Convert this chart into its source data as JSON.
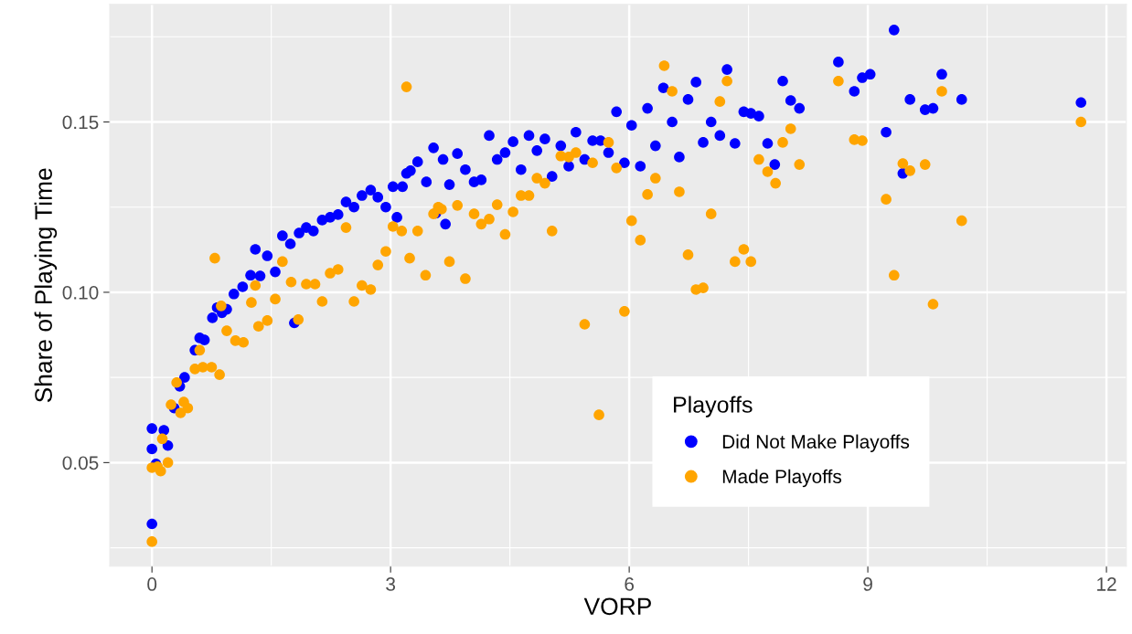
{
  "chart_data": {
    "type": "scatter",
    "xlabel": "VORP",
    "ylabel": "Share of Playing Time",
    "legend_title": "Playoffs",
    "legend": "bottom right",
    "grid": true,
    "marker": "circle",
    "xlim": [
      -0.53,
      12.25
    ],
    "ylim": [
      0.0196,
      0.1845
    ],
    "xticks": [
      0,
      3,
      6,
      9,
      12
    ],
    "yticks": [
      {
        "value": 0.05,
        "label": "0.05"
      },
      {
        "value": 0.1,
        "label": "0.10"
      },
      {
        "value": 0.15,
        "label": "0.15"
      }
    ],
    "series": [
      {
        "name": "Did Not Make Playoffs",
        "color": "#0000ff",
        "x": [
          0,
          0,
          0,
          0.05,
          0.15,
          0.2,
          0.28,
          0.35,
          0.41,
          0.54,
          0.6,
          0.66,
          0.76,
          0.82,
          0.88,
          0.94,
          1.03,
          1.14,
          1.24,
          1.3,
          1.36,
          1.45,
          1.55,
          1.64,
          1.74,
          1.79,
          1.85,
          1.94,
          2.03,
          2.14,
          2.24,
          2.34,
          2.44,
          2.54,
          2.64,
          2.75,
          2.84,
          2.94,
          3.03,
          3.08,
          3.15,
          3.2,
          3.25,
          3.34,
          3.45,
          3.54,
          3.57,
          3.66,
          3.69,
          3.74,
          3.84,
          3.94,
          4.05,
          4.14,
          4.24,
          4.34,
          4.44,
          4.54,
          4.64,
          4.74,
          4.84,
          4.94,
          5.03,
          5.14,
          5.24,
          5.33,
          5.44,
          5.54,
          5.64,
          5.74,
          5.84,
          5.94,
          6.03,
          6.14,
          6.23,
          6.33,
          6.43,
          6.54,
          6.63,
          6.74,
          6.84,
          6.93,
          7.03,
          7.14,
          7.23,
          7.33,
          7.44,
          7.53,
          7.63,
          7.74,
          7.83,
          7.93,
          8.03,
          8.14,
          8.63,
          8.83,
          8.93,
          9.03,
          9.23,
          9.33,
          9.44,
          9.53,
          9.72,
          9.82,
          9.93,
          10.18,
          11.68
        ],
        "values": [
          0.032,
          0.054,
          0.06,
          0.0496,
          0.0595,
          0.055,
          0.066,
          0.0724,
          0.075,
          0.083,
          0.0866,
          0.086,
          0.0925,
          0.0955,
          0.094,
          0.095,
          0.0995,
          0.1016,
          0.105,
          0.1126,
          0.1048,
          0.1107,
          0.106,
          0.1166,
          0.1142,
          0.091,
          0.1174,
          0.119,
          0.118,
          0.1212,
          0.122,
          0.1228,
          0.1265,
          0.125,
          0.1284,
          0.13,
          0.1279,
          0.125,
          0.131,
          0.122,
          0.131,
          0.1349,
          0.1357,
          0.1383,
          0.1324,
          0.1424,
          0.1232,
          0.139,
          0.12,
          0.1316,
          0.1407,
          0.136,
          0.1324,
          0.133,
          0.146,
          0.139,
          0.141,
          0.1442,
          0.136,
          0.146,
          0.1416,
          0.145,
          0.134,
          0.143,
          0.137,
          0.147,
          0.139,
          0.1445,
          0.1445,
          0.141,
          0.153,
          0.138,
          0.149,
          0.137,
          0.154,
          0.143,
          0.16,
          0.15,
          0.1397,
          0.1566,
          0.1617,
          0.144,
          0.15,
          0.146,
          0.1654,
          0.1437,
          0.153,
          0.1525,
          0.1517,
          0.1437,
          0.1375,
          0.162,
          0.1563,
          0.154,
          0.1676,
          0.159,
          0.163,
          0.164,
          0.147,
          0.177,
          0.1349,
          0.1566,
          0.1536,
          0.154,
          0.164,
          0.1566,
          0.1557
        ]
      },
      {
        "name": "Made Playoffs",
        "color": "#ffa500",
        "x": [
          0,
          0,
          0.07,
          0.11,
          0.13,
          0.2,
          0.24,
          0.31,
          0.36,
          0.4,
          0.45,
          0.54,
          0.6,
          0.64,
          0.75,
          0.79,
          0.85,
          0.87,
          0.94,
          1.05,
          1.15,
          1.25,
          1.3,
          1.34,
          1.45,
          1.55,
          1.64,
          1.75,
          1.84,
          1.94,
          2.05,
          2.14,
          2.24,
          2.34,
          2.44,
          2.54,
          2.64,
          2.75,
          2.84,
          2.94,
          3.03,
          3.14,
          3.2,
          3.24,
          3.34,
          3.44,
          3.54,
          3.6,
          3.64,
          3.74,
          3.84,
          3.94,
          4.05,
          4.14,
          4.24,
          4.34,
          4.44,
          4.54,
          4.64,
          4.74,
          4.84,
          4.94,
          5.03,
          5.14,
          5.24,
          5.33,
          5.44,
          5.54,
          5.62,
          5.74,
          5.84,
          5.94,
          6.03,
          6.14,
          6.23,
          6.33,
          6.44,
          6.54,
          6.63,
          6.74,
          6.84,
          6.93,
          7.03,
          7.14,
          7.23,
          7.33,
          7.44,
          7.53,
          7.63,
          7.74,
          7.84,
          7.93,
          8.03,
          8.14,
          8.63,
          8.83,
          8.93,
          9.23,
          9.33,
          9.44,
          9.53,
          9.72,
          9.82,
          9.93,
          10.18,
          11.68
        ],
        "values": [
          0.0268,
          0.0485,
          0.0488,
          0.0475,
          0.057,
          0.05,
          0.067,
          0.0735,
          0.0646,
          0.0678,
          0.066,
          0.0775,
          0.083,
          0.078,
          0.078,
          0.11,
          0.0758,
          0.096,
          0.0887,
          0.0858,
          0.0853,
          0.097,
          0.102,
          0.09,
          0.0917,
          0.098,
          0.109,
          0.103,
          0.092,
          0.1024,
          0.1024,
          0.0973,
          0.1056,
          0.1067,
          0.119,
          0.0973,
          0.102,
          0.1008,
          0.108,
          0.112,
          0.1193,
          0.118,
          0.1603,
          0.11,
          0.118,
          0.105,
          0.123,
          0.125,
          0.1244,
          0.109,
          0.1255,
          0.104,
          0.123,
          0.12,
          0.1215,
          0.1257,
          0.117,
          0.1236,
          0.1284,
          0.1284,
          0.1335,
          0.132,
          0.118,
          0.14,
          0.1397,
          0.141,
          0.0906,
          0.138,
          0.064,
          0.144,
          0.1365,
          0.0944,
          0.121,
          0.1153,
          0.1287,
          0.1335,
          0.1665,
          0.159,
          0.1295,
          0.111,
          0.1008,
          0.1013,
          0.123,
          0.156,
          0.162,
          0.109,
          0.1126,
          0.109,
          0.139,
          0.1354,
          0.132,
          0.144,
          0.148,
          0.1375,
          0.162,
          0.1448,
          0.1445,
          0.1273,
          0.105,
          0.1378,
          0.1357,
          0.1375,
          0.0965,
          0.159,
          0.121,
          0.15
        ]
      }
    ]
  }
}
